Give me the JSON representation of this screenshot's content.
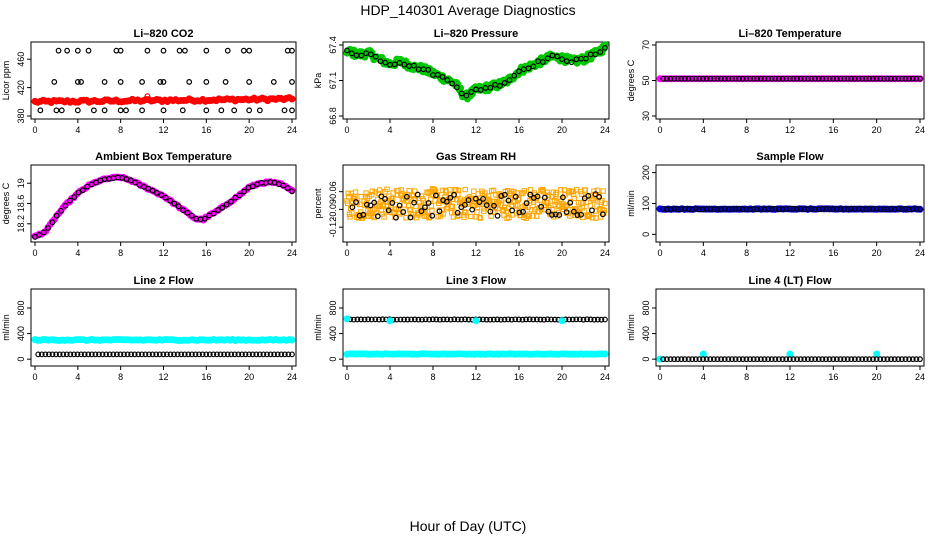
{
  "figure": {
    "title": "HDP_140301  Average Diagnostics",
    "xcaption": "Hour of Day (UTC)"
  },
  "chart_data": [
    {
      "type": "scatter",
      "title": "Li–820 CO2",
      "ylabel": "Licor ppm",
      "xlim": [
        0,
        24
      ],
      "xticks": [
        0,
        4,
        8,
        12,
        16,
        20,
        24
      ],
      "ylim": [
        380,
        480
      ],
      "yticks": [
        380,
        420,
        460
      ],
      "series": [
        {
          "name": "mean",
          "color": "#ff0000",
          "marker": "filled",
          "x_range": [
            0,
            24
          ],
          "n": 96,
          "y_start": 400,
          "y_end": 404,
          "spread": 2
        },
        {
          "name": "outliers",
          "color": "#ff0000",
          "marker": "circle",
          "x": [
            10.5
          ],
          "y": [
            408
          ]
        },
        {
          "name": "cal-high",
          "color": "#000000",
          "marker": "circle",
          "x": [
            2.2,
            3.0,
            4.0,
            5.0,
            7.6,
            8.0,
            10.5,
            12.0,
            13.5,
            14.0,
            16.0,
            18.0,
            19.5,
            20.0,
            23.6,
            24.0
          ],
          "y": [
            472,
            472,
            472,
            472,
            472,
            472,
            472,
            472,
            472,
            472,
            472,
            472,
            472,
            472,
            472,
            472
          ]
        },
        {
          "name": "cal-mid",
          "color": "#000000",
          "marker": "circle",
          "x": [
            1.8,
            4.0,
            4.3,
            6.5,
            8.0,
            10.0,
            11.7,
            12.0,
            14.4,
            16.0,
            17.8,
            20.0,
            22.3,
            24.0
          ],
          "y": [
            428,
            428,
            428,
            428,
            428,
            428,
            428,
            428,
            428,
            428,
            428,
            428,
            428,
            428
          ]
        },
        {
          "name": "cal-low",
          "color": "#000000",
          "marker": "circle",
          "x": [
            0.5,
            2.0,
            2.5,
            4.0,
            5.5,
            6.5,
            8.0,
            8.5,
            10.0,
            12.0,
            13.8,
            16.0,
            17.4,
            18.6,
            20.0,
            21.0,
            23.3,
            24.0
          ],
          "y": [
            388,
            388,
            388,
            388,
            388,
            388,
            388,
            388,
            388,
            388,
            388,
            388,
            388,
            388,
            388,
            388,
            388,
            388
          ]
        }
      ]
    },
    {
      "type": "scatter",
      "title": "Li–820 Pressure",
      "ylabel": "kPa",
      "xlim": [
        0,
        24
      ],
      "xticks": [
        0,
        4,
        8,
        12,
        16,
        20,
        24
      ],
      "ylim": [
        66.8,
        67.4
      ],
      "yticks": [
        66.8,
        67.1,
        67.4
      ],
      "series": [
        {
          "name": "mean",
          "color": "#00c800",
          "marker": "filled",
          "curve": "pressure",
          "n": 260,
          "spread": 0.03
        },
        {
          "name": "samples",
          "color": "#000000",
          "marker": "circle",
          "curve": "pressure",
          "n": 55,
          "spread": 0.015
        }
      ]
    },
    {
      "type": "scatter",
      "title": "Li–820 Temperature",
      "ylabel": "degrees C",
      "xlim": [
        0,
        24
      ],
      "xticks": [
        0,
        4,
        8,
        12,
        16,
        20,
        24
      ],
      "ylim": [
        30,
        70
      ],
      "yticks": [
        30,
        50,
        70
      ],
      "series": [
        {
          "name": "mean",
          "color": "#ff00ff",
          "marker": "filled",
          "x_range": [
            0,
            24
          ],
          "n": 96,
          "y_start": 51,
          "y_end": 51,
          "spread": 0
        },
        {
          "name": "samples",
          "color": "#000000",
          "marker": "circle",
          "x_range": [
            0.3,
            24
          ],
          "n": 72,
          "y_start": 51,
          "y_end": 51,
          "spread": 0
        }
      ]
    },
    {
      "type": "scatter",
      "title": "Ambient Box Temperature",
      "ylabel": "degrees C",
      "xlim": [
        0,
        24
      ],
      "xticks": [
        0,
        4,
        8,
        12,
        16,
        20,
        24
      ],
      "ylim": [
        17.9,
        19.3
      ],
      "yticks": [
        18.2,
        18.6,
        19.0
      ],
      "series": [
        {
          "name": "mean",
          "color": "#ff00ff",
          "marker": "filled",
          "curve": "ambient",
          "n": 120,
          "spread": 0.015
        },
        {
          "name": "samples",
          "color": "#000000",
          "marker": "circle",
          "curve": "ambient",
          "n": 60,
          "spread": 0.01
        }
      ]
    },
    {
      "type": "scatter",
      "title": "Gas Stream RH",
      "ylabel": "percent",
      "xlim": [
        0,
        24
      ],
      "xticks": [
        0,
        4,
        8,
        12,
        16,
        20,
        24
      ],
      "ylim": [
        -0.14,
        -0.02
      ],
      "yticks": [
        -0.12,
        -0.09,
        -0.06
      ],
      "series": [
        {
          "name": "mean",
          "color": "#ffa500",
          "marker": "square",
          "x_range": [
            0,
            24
          ],
          "n": 420,
          "y_start": -0.08,
          "y_end": -0.08,
          "spread": 0.025
        },
        {
          "name": "samples",
          "color": "#000000",
          "marker": "circle",
          "x_range": [
            0.5,
            23.8
          ],
          "n": 70,
          "y_start": -0.085,
          "y_end": -0.08,
          "spread": 0.02
        }
      ]
    },
    {
      "type": "scatter",
      "title": "Sample Flow",
      "ylabel": "ml/min",
      "xlim": [
        0,
        24
      ],
      "xticks": [
        0,
        4,
        8,
        12,
        16,
        20,
        24
      ],
      "ylim": [
        -15,
        215
      ],
      "yticks": [
        0,
        100,
        200
      ],
      "series": [
        {
          "name": "mean",
          "color": "#0000ff",
          "marker": "filled",
          "x_range": [
            0,
            24
          ],
          "n": 96,
          "y_start": 82,
          "y_end": 82,
          "spread": 1
        },
        {
          "name": "samples",
          "color": "#000000",
          "marker": "circle",
          "x_range": [
            0.3,
            24
          ],
          "n": 72,
          "y_start": 82,
          "y_end": 82,
          "spread": 1
        }
      ]
    },
    {
      "type": "scatter",
      "title": "Line 2 Flow",
      "ylabel": "ml/min",
      "xlim": [
        0,
        24
      ],
      "xticks": [
        0,
        4,
        8,
        12,
        16,
        20,
        24
      ],
      "ylim": [
        -60,
        1050
      ],
      "yticks": [
        0,
        400,
        800
      ],
      "series": [
        {
          "name": "mean",
          "color": "#00ffff",
          "marker": "filled",
          "x_range": [
            0,
            24
          ],
          "n": 96,
          "y_start": 300,
          "y_end": 300,
          "spread": 8
        },
        {
          "name": "samples",
          "color": "#000000",
          "marker": "circle",
          "x_range": [
            0.3,
            24
          ],
          "n": 72,
          "y_start": 75,
          "y_end": 75,
          "spread": 0
        }
      ]
    },
    {
      "type": "scatter",
      "title": "Line 3 Flow",
      "ylabel": "ml/min",
      "xlim": [
        0,
        24
      ],
      "xticks": [
        0,
        4,
        8,
        12,
        16,
        20,
        24
      ],
      "ylim": [
        -60,
        1050
      ],
      "yticks": [
        0,
        400,
        800
      ],
      "series": [
        {
          "name": "mean",
          "color": "#00ffff",
          "marker": "filled",
          "x_range": [
            0,
            24
          ],
          "n": 96,
          "y_start": 80,
          "y_end": 80,
          "spread": 4
        },
        {
          "name": "samples",
          "color": "#000000",
          "marker": "circle",
          "x_range": [
            0.3,
            24
          ],
          "n": 72,
          "y_start": 620,
          "y_end": 620,
          "spread": 3
        },
        {
          "name": "cal-points",
          "color": "#00ffff",
          "marker": "filled",
          "x": [
            0,
            4,
            12,
            20
          ],
          "y": [
            630,
            600,
            600,
            600
          ]
        }
      ]
    },
    {
      "type": "scatter",
      "title": "Line 4 (LT) Flow",
      "ylabel": "ml/min",
      "xlim": [
        0,
        24
      ],
      "xticks": [
        0,
        4,
        8,
        12,
        16,
        20,
        24
      ],
      "ylim": [
        -60,
        1050
      ],
      "yticks": [
        0,
        400,
        800
      ],
      "series": [
        {
          "name": "mean",
          "color": "#00ffff",
          "marker": "filled",
          "x": [
            0,
            4,
            12,
            20
          ],
          "y": [
            0,
            80,
            80,
            80
          ]
        },
        {
          "name": "samples",
          "color": "#000000",
          "marker": "circle",
          "x_range": [
            0.3,
            24
          ],
          "n": 72,
          "y_start": 0,
          "y_end": 0,
          "spread": 0
        }
      ]
    }
  ]
}
